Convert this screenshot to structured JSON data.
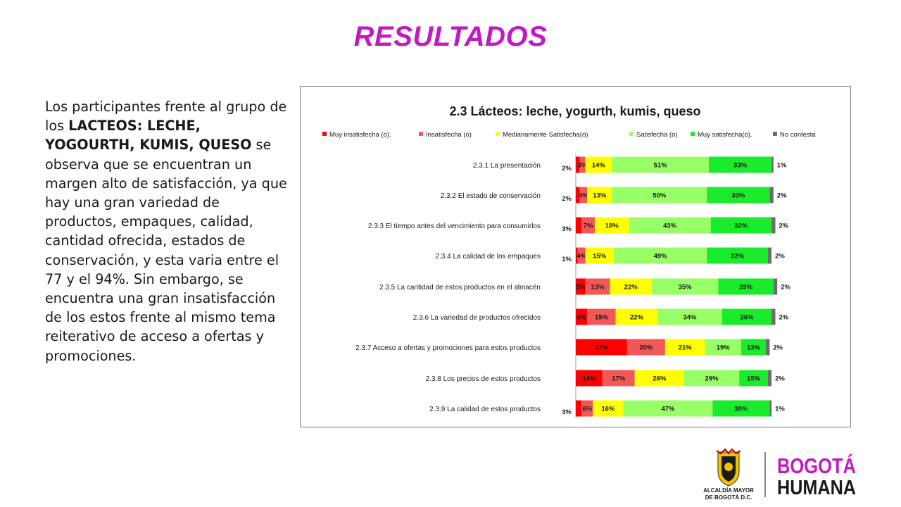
{
  "slide": {
    "title": "RESULTADOS",
    "paragraph": {
      "part1": "Los participantes frente al grupo de los ",
      "bold": "LACTEOS: LECHE, YOGOURTH, KUMIS, QUESO",
      "part2": "  se observa que se encuentran un margen alto de satisfacción, ya que hay una gran variedad de productos, empaques, calidad, cantidad ofrecida, estados de conservación, y esta varia entre el 77 y el 94%. Sin embargo, se encuentra una gran insatisfacción de los estos frente al mismo tema reiterativo de acceso a ofertas y promociones."
    }
  },
  "logos": {
    "alcaldia_line1": "ALCALDÍA MAYOR",
    "alcaldia_line2": "DE BOGOTÁ D.C.",
    "bogota_word1": "BOGOTÁ",
    "bogota_word2": "HUMANA",
    "bogota_color": "#c21ac2"
  },
  "chart_data": {
    "type": "bar",
    "orientation": "horizontal-stacked-100",
    "title": "2.3 Lácteos: leche, yogurth, kumis, queso",
    "legend_position": "top",
    "categories": [
      "2.3.1 La presentación",
      "2.3.2 El estado de conservación",
      "2.3.3 El tiempo antes del vencimiento para consumirlos",
      "2.3.4  La calidad de los empaques",
      "2.3.5 La cantidad de estos productos en el almacén",
      "2.3.6 La variedad de productos ofrecidos",
      "2.3.7 Acceso a ofertas y promociones para estos productos",
      "2.3.8 Los precios de estos productos",
      "2.3.9 La calidad de estos productos"
    ],
    "series": [
      {
        "name": "Muy insatisfecha (o).",
        "color": "#ff0000",
        "values": [
          2,
          2,
          3,
          1,
          5,
          6,
          27,
          14,
          3
        ],
        "labels": [
          "2%",
          "2%",
          "3%",
          "1%",
          "5%",
          "6%",
          "27%",
          "14%",
          "3%"
        ]
      },
      {
        "name": "Insatisfecha (o)",
        "color": "#f25858",
        "values": [
          3,
          4,
          7,
          4,
          13,
          15,
          20,
          17,
          6
        ],
        "labels": [
          "3%",
          "4%",
          "7%",
          "4%",
          "13%",
          "15%",
          "20%",
          "17%",
          "6%"
        ]
      },
      {
        "name": "Medianamente Satisfecha(o)",
        "color": "#ffff00",
        "values": [
          14,
          13,
          18,
          15,
          22,
          22,
          21,
          26,
          16
        ],
        "labels": [
          "14%",
          "13%",
          "18%",
          "15%",
          "22%",
          "22%",
          "21%",
          "26%",
          "16%"
        ]
      },
      {
        "name": "Satisfecha (o)",
        "color": "#99ff66",
        "values": [
          51,
          50,
          43,
          49,
          35,
          34,
          19,
          29,
          47
        ],
        "labels": [
          "51%",
          "50%",
          "43%",
          "49%",
          "35%",
          "34%",
          "19%",
          "29%",
          "47%"
        ]
      },
      {
        "name": "Muy satisfecha(o).",
        "color": "#1aeb2c",
        "values": [
          33,
          33,
          32,
          32,
          29,
          26,
          13,
          15,
          30
        ],
        "labels": [
          "33%",
          "33%",
          "32%",
          "32%",
          "29%",
          "26%",
          "13%",
          "15%",
          "30%"
        ]
      },
      {
        "name": "No contesta",
        "color": "#6d6d6d",
        "values": [
          1,
          2,
          2,
          2,
          2,
          2,
          2,
          2,
          1
        ],
        "labels": [
          "1%",
          "2%",
          "2%",
          "2%",
          "2%",
          "2%",
          "2%",
          "2%",
          "1%"
        ]
      }
    ]
  }
}
